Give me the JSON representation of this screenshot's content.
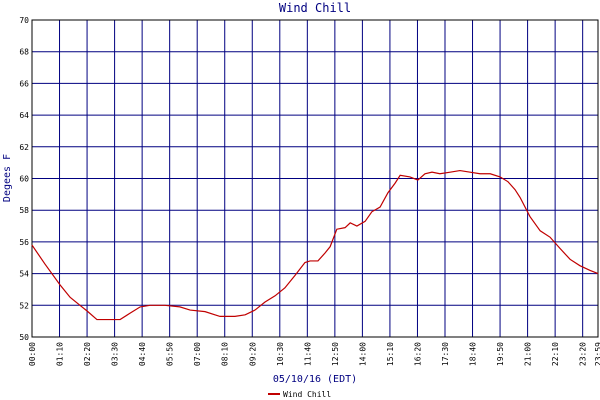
{
  "chart_data": {
    "type": "line",
    "title": "Wind Chill",
    "y_label": "Degees F",
    "x_label": "05/10/16 (EDT)",
    "xlim": [
      0,
      1439
    ],
    "xticks": [
      {
        "value": 0,
        "label": "00:00"
      },
      {
        "value": 70,
        "label": "01:10"
      },
      {
        "value": 140,
        "label": "02:20"
      },
      {
        "value": 210,
        "label": "03:30"
      },
      {
        "value": 280,
        "label": "04:40"
      },
      {
        "value": 350,
        "label": "05:50"
      },
      {
        "value": 420,
        "label": "07:00"
      },
      {
        "value": 490,
        "label": "08:10"
      },
      {
        "value": 560,
        "label": "09:20"
      },
      {
        "value": 630,
        "label": "10:30"
      },
      {
        "value": 700,
        "label": "11:40"
      },
      {
        "value": 770,
        "label": "12:50"
      },
      {
        "value": 840,
        "label": "14:00"
      },
      {
        "value": 910,
        "label": "15:10"
      },
      {
        "value": 980,
        "label": "16:20"
      },
      {
        "value": 1050,
        "label": "17:30"
      },
      {
        "value": 1120,
        "label": "18:40"
      },
      {
        "value": 1190,
        "label": "19:50"
      },
      {
        "value": 1260,
        "label": "21:00"
      },
      {
        "value": 1330,
        "label": "22:10"
      },
      {
        "value": 1400,
        "label": "23:20"
      },
      {
        "value": 1439,
        "label": "23:59"
      }
    ],
    "ylim": [
      50,
      70
    ],
    "yticks": [
      50,
      52,
      54,
      56,
      58,
      60,
      62,
      64,
      66,
      68,
      70
    ],
    "grid": true,
    "legend": "bottom",
    "x": [
      0,
      33,
      71,
      97,
      122,
      142,
      165,
      198,
      224,
      249,
      275,
      300,
      338,
      376,
      402,
      440,
      465,
      478,
      516,
      542,
      567,
      592,
      618,
      643,
      669,
      694,
      707,
      727,
      745,
      758,
      775,
      796,
      809,
      826,
      847,
      864,
      885,
      905,
      923,
      936,
      961,
      981,
      999,
      1017,
      1037,
      1063,
      1088,
      1114,
      1139,
      1165,
      1190,
      1210,
      1228,
      1241,
      1266,
      1292,
      1317,
      1342,
      1368,
      1393,
      1419,
      1439
    ],
    "series": [
      {
        "name": "Wind Chill",
        "color": "#c00000",
        "values": [
          55.8,
          54.6,
          53.3,
          52.5,
          52.0,
          51.6,
          51.1,
          51.1,
          51.1,
          51.5,
          51.9,
          52.0,
          52.0,
          51.9,
          51.7,
          51.6,
          51.4,
          51.3,
          51.3,
          51.4,
          51.7,
          52.2,
          52.6,
          53.1,
          53.9,
          54.7,
          54.8,
          54.8,
          55.3,
          55.7,
          56.8,
          56.9,
          57.2,
          57.0,
          57.3,
          57.9,
          58.2,
          59.1,
          59.7,
          60.2,
          60.1,
          59.9,
          60.3,
          60.4,
          60.3,
          60.4,
          60.5,
          60.4,
          60.3,
          60.3,
          60.1,
          59.8,
          59.3,
          58.8,
          57.6,
          56.7,
          56.3,
          55.6,
          54.9,
          54.5,
          54.2,
          54.0
        ]
      }
    ]
  }
}
